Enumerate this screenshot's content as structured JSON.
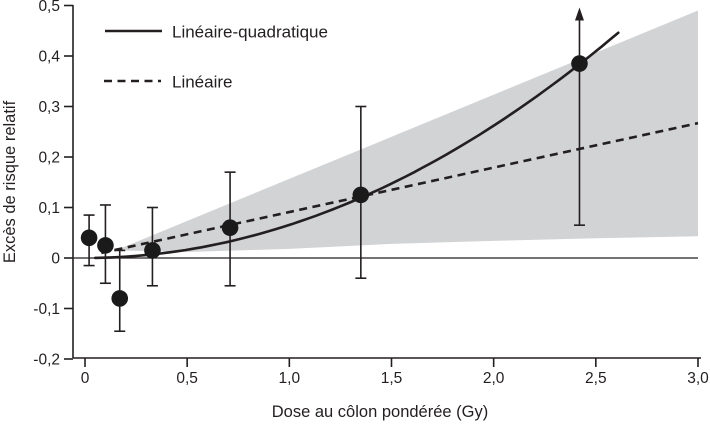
{
  "chart_data": {
    "type": "scatter",
    "title": "",
    "xlabel": "Dose au côlon pondérée (Gy)",
    "ylabel": "Excès de risque relatif",
    "xlim": [
      0,
      3.0
    ],
    "ylim": [
      -0.2,
      0.5
    ],
    "grid": false,
    "legend_position": "top-left-inside",
    "x_ticks": [
      {
        "v": 0.0,
        "label": "0"
      },
      {
        "v": 0.5,
        "label": "0,5"
      },
      {
        "v": 1.0,
        "label": "1,0"
      },
      {
        "v": 1.5,
        "label": "1,5"
      },
      {
        "v": 2.0,
        "label": "2,0"
      },
      {
        "v": 2.5,
        "label": "2,5"
      },
      {
        "v": 3.0,
        "label": "3,0"
      }
    ],
    "y_ticks": [
      {
        "v": 0.5,
        "label": "0,5"
      },
      {
        "v": 0.4,
        "label": "0,4"
      },
      {
        "v": 0.3,
        "label": "0,3"
      },
      {
        "v": 0.2,
        "label": "0,2"
      },
      {
        "v": 0.1,
        "label": "0,1"
      },
      {
        "v": 0.0,
        "label": "0"
      },
      {
        "v": -0.1,
        "label": "-0,1"
      },
      {
        "v": -0.2,
        "label": "-0,2"
      }
    ],
    "legend": [
      {
        "label": "Linéaire-quadratique",
        "style": "solid"
      },
      {
        "label": "Linéaire",
        "style": "dashed"
      }
    ],
    "points": [
      {
        "dose": 0.02,
        "err": 0.04,
        "ci_low": -0.015,
        "ci_high": 0.085,
        "arrow_up": false
      },
      {
        "dose": 0.1,
        "err": 0.025,
        "ci_low": -0.05,
        "ci_high": 0.105,
        "arrow_up": false
      },
      {
        "dose": 0.17,
        "err": -0.08,
        "ci_low": -0.145,
        "ci_high": 0.015,
        "arrow_up": false
      },
      {
        "dose": 0.33,
        "err": 0.015,
        "ci_low": -0.055,
        "ci_high": 0.1,
        "arrow_up": false
      },
      {
        "dose": 0.71,
        "err": 0.06,
        "ci_low": -0.055,
        "ci_high": 0.17,
        "arrow_up": false
      },
      {
        "dose": 1.35,
        "err": 0.125,
        "ci_low": -0.04,
        "ci_high": 0.3,
        "arrow_up": false
      },
      {
        "dose": 2.42,
        "err": 0.385,
        "ci_low": 0.065,
        "ci_high": 0.49,
        "arrow_up": true
      }
    ],
    "linear_fit": {
      "intercept": 0.003,
      "slope": 0.088,
      "range": [
        0.08,
        3.0
      ]
    },
    "lq_fit": {
      "alpha": 0.0,
      "beta": 0.0655,
      "range": [
        0.05,
        2.63
      ]
    },
    "confidence_band": {
      "top": [
        [
          0.15,
          0.015
        ],
        [
          3.0,
          0.49
        ]
      ],
      "bottom": [
        [
          0.15,
          0.015
        ],
        [
          0.5,
          0.012
        ],
        [
          1.0,
          0.018
        ],
        [
          1.5,
          0.028
        ],
        [
          2.0,
          0.034
        ],
        [
          2.5,
          0.039
        ],
        [
          3.0,
          0.043
        ]
      ]
    },
    "zero_line": 0.0,
    "colors": {
      "band": "#d2d3d5",
      "line": "#231f20",
      "point": "#1a1a1a",
      "background": "#ffffff"
    }
  }
}
